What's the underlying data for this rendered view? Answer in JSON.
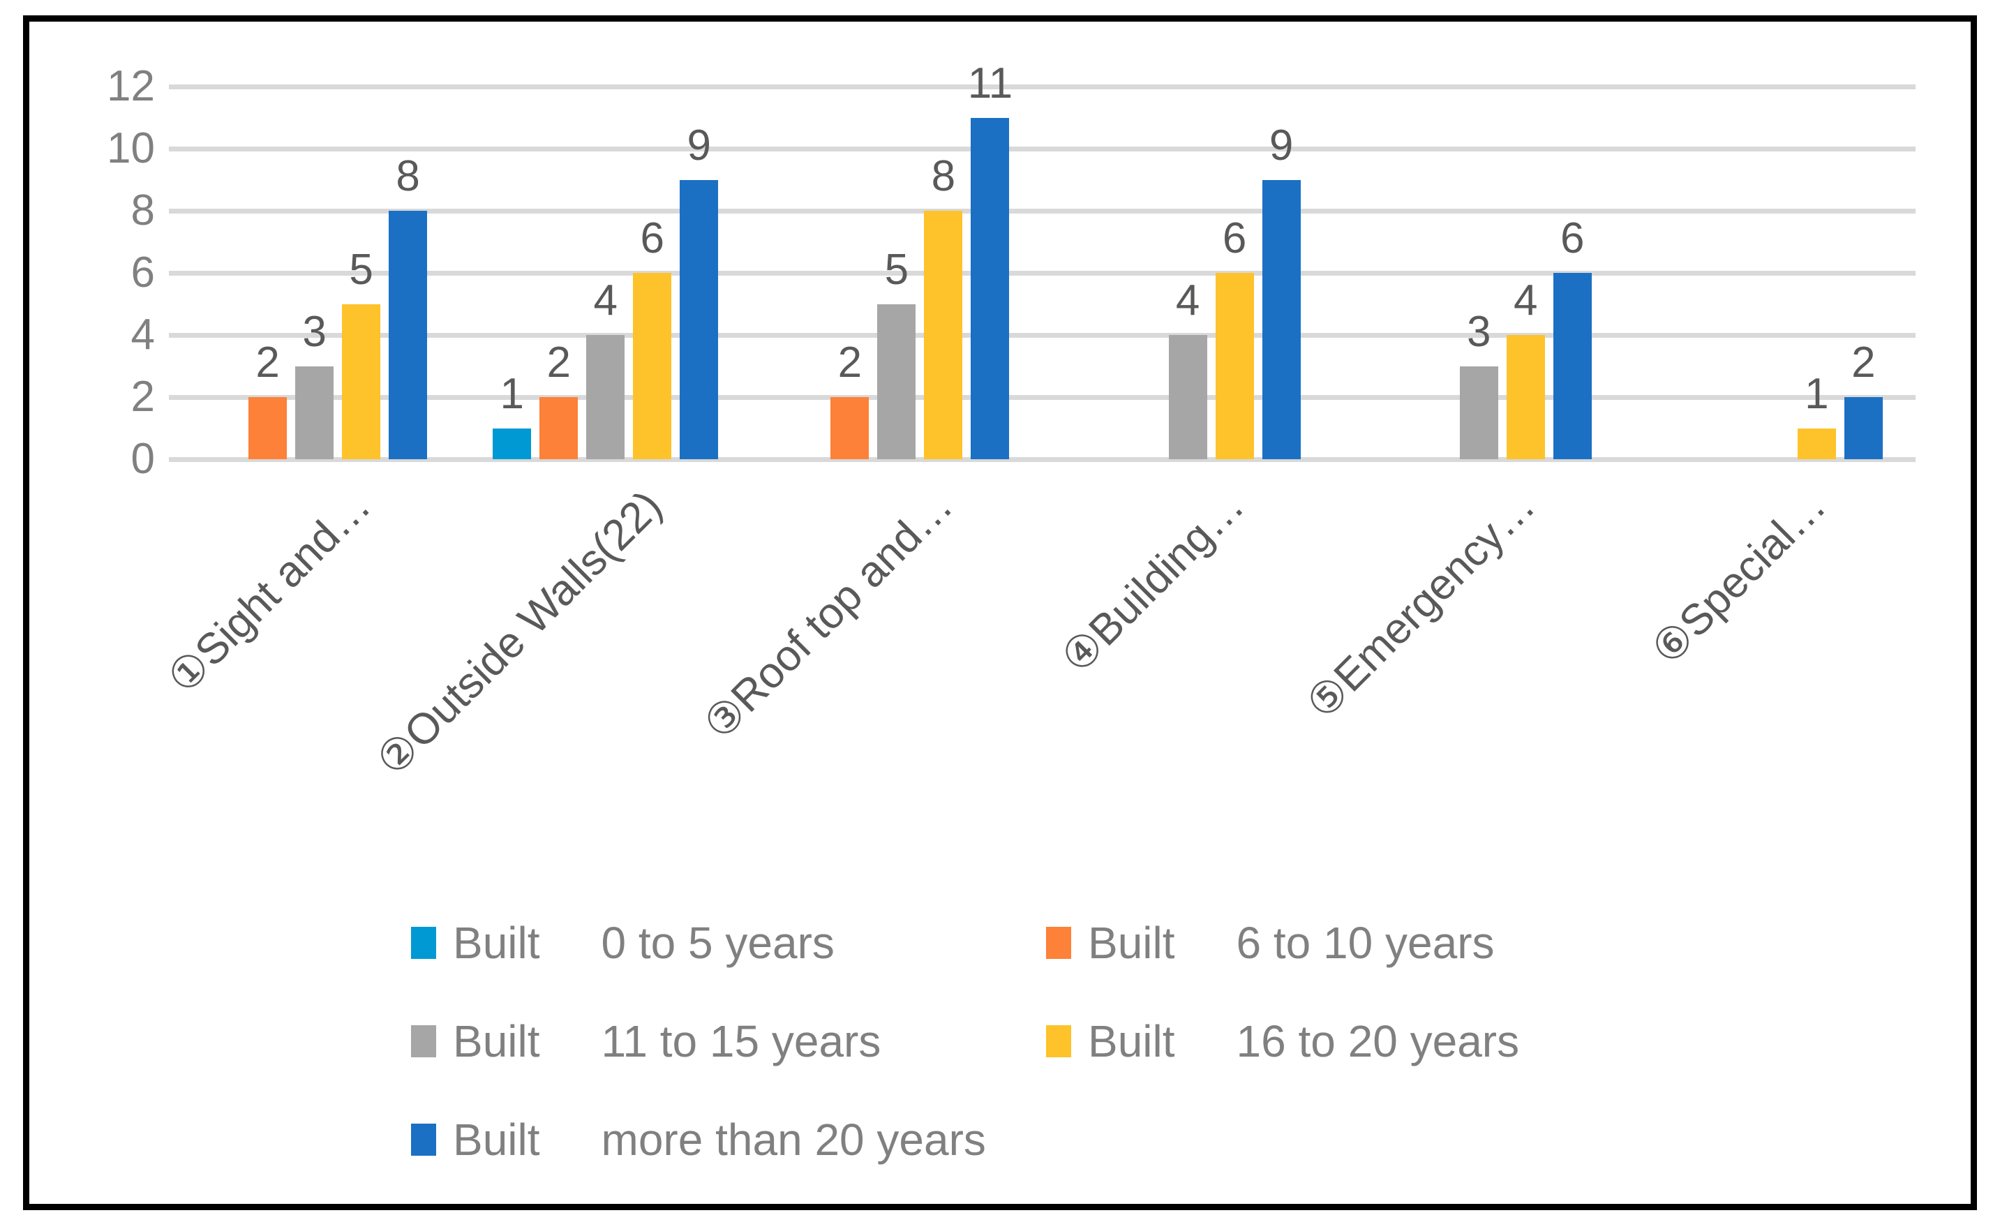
{
  "chart_data": {
    "type": "bar",
    "title": "",
    "xlabel": "",
    "ylabel": "",
    "categories": [
      "①Sight and…",
      "②Outside Walls(22)",
      "③Roof top and…",
      "④Building…",
      "⑤Emergency…",
      "⑥Special…"
    ],
    "series": [
      {
        "name_prefix": "Built",
        "name_range": "0 to 5 years",
        "color": "#0099D3",
        "values": [
          0,
          1,
          0,
          0,
          0,
          0
        ]
      },
      {
        "name_prefix": "Built",
        "name_range": "6 to 10 years",
        "color": "#FD8138",
        "values": [
          2,
          2,
          2,
          0,
          0,
          0
        ]
      },
      {
        "name_prefix": "Built",
        "name_range": "11 to 15 years",
        "color": "#A6A6A6",
        "values": [
          3,
          4,
          5,
          4,
          3,
          0
        ]
      },
      {
        "name_prefix": "Built",
        "name_range": "16 to 20 years",
        "color": "#FEC32B",
        "values": [
          5,
          6,
          8,
          6,
          4,
          1
        ]
      },
      {
        "name_prefix": "Built",
        "name_range": "more than 20 years",
        "color": "#1B70C4",
        "values": [
          8,
          9,
          11,
          9,
          6,
          2
        ]
      }
    ],
    "y_axis": {
      "min": 0,
      "max": 12,
      "step": 2,
      "tick_labels": [
        "0",
        "2",
        "4",
        "6",
        "8",
        "10",
        "12"
      ]
    },
    "grid": true,
    "data_labels_shown": true,
    "legend_position": "bottom"
  },
  "style_colors": {
    "gridline": "#D9D9D9",
    "axis_tick_text": "#808080",
    "category_text": "#595959",
    "data_label_text": "#595959",
    "legend_text": "#808080",
    "frame_border": "#000000",
    "background": "#FFFFFF"
  }
}
